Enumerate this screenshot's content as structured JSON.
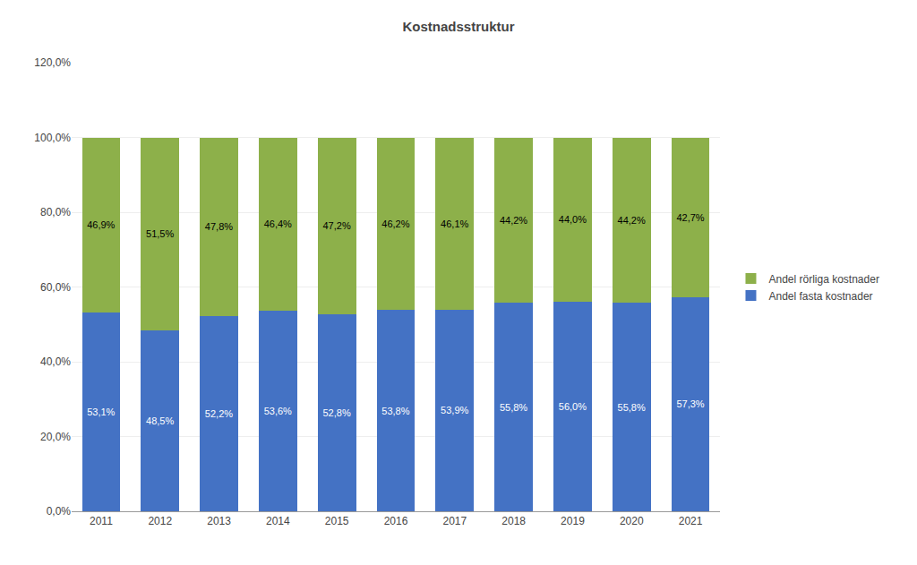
{
  "chart_data": {
    "type": "bar",
    "stacked": true,
    "title": "Kostnadsstruktur",
    "categories": [
      "2011",
      "2012",
      "2013",
      "2014",
      "2015",
      "2016",
      "2017",
      "2018",
      "2019",
      "2020",
      "2021"
    ],
    "series": [
      {
        "name": "Andel fasta kostnader",
        "color": "#4472C4",
        "values": [
          53.1,
          48.5,
          52.2,
          53.6,
          52.8,
          53.8,
          53.9,
          55.8,
          56.0,
          55.8,
          57.3
        ],
        "value_labels": [
          "53,1%",
          "48,5%",
          "52,2%",
          "53,6%",
          "52,8%",
          "53,8%",
          "53,9%",
          "55,8%",
          "56,0%",
          "55,8%",
          "57,3%"
        ]
      },
      {
        "name": "Andel rörliga kostnader",
        "color": "#8DB04A",
        "values": [
          46.9,
          51.5,
          47.8,
          46.4,
          47.2,
          46.2,
          46.1,
          44.2,
          44.0,
          44.2,
          42.7
        ],
        "value_labels": [
          "46,9%",
          "51,5%",
          "47,8%",
          "46,4%",
          "47,2%",
          "46,2%",
          "46,1%",
          "44,2%",
          "44,0%",
          "44,2%",
          "42,7%"
        ]
      }
    ],
    "ylim": [
      0,
      120
    ],
    "yticks": [
      {
        "value": 0,
        "label": "0,0%"
      },
      {
        "value": 20,
        "label": "20,0%"
      },
      {
        "value": 40,
        "label": "40,0%"
      },
      {
        "value": 60,
        "label": "60,0%"
      },
      {
        "value": 80,
        "label": "80,0%"
      },
      {
        "value": 100,
        "label": "100,0%"
      },
      {
        "value": 120,
        "label": "120,0%"
      }
    ],
    "grid": true,
    "legend": "right",
    "data_labels": true
  }
}
